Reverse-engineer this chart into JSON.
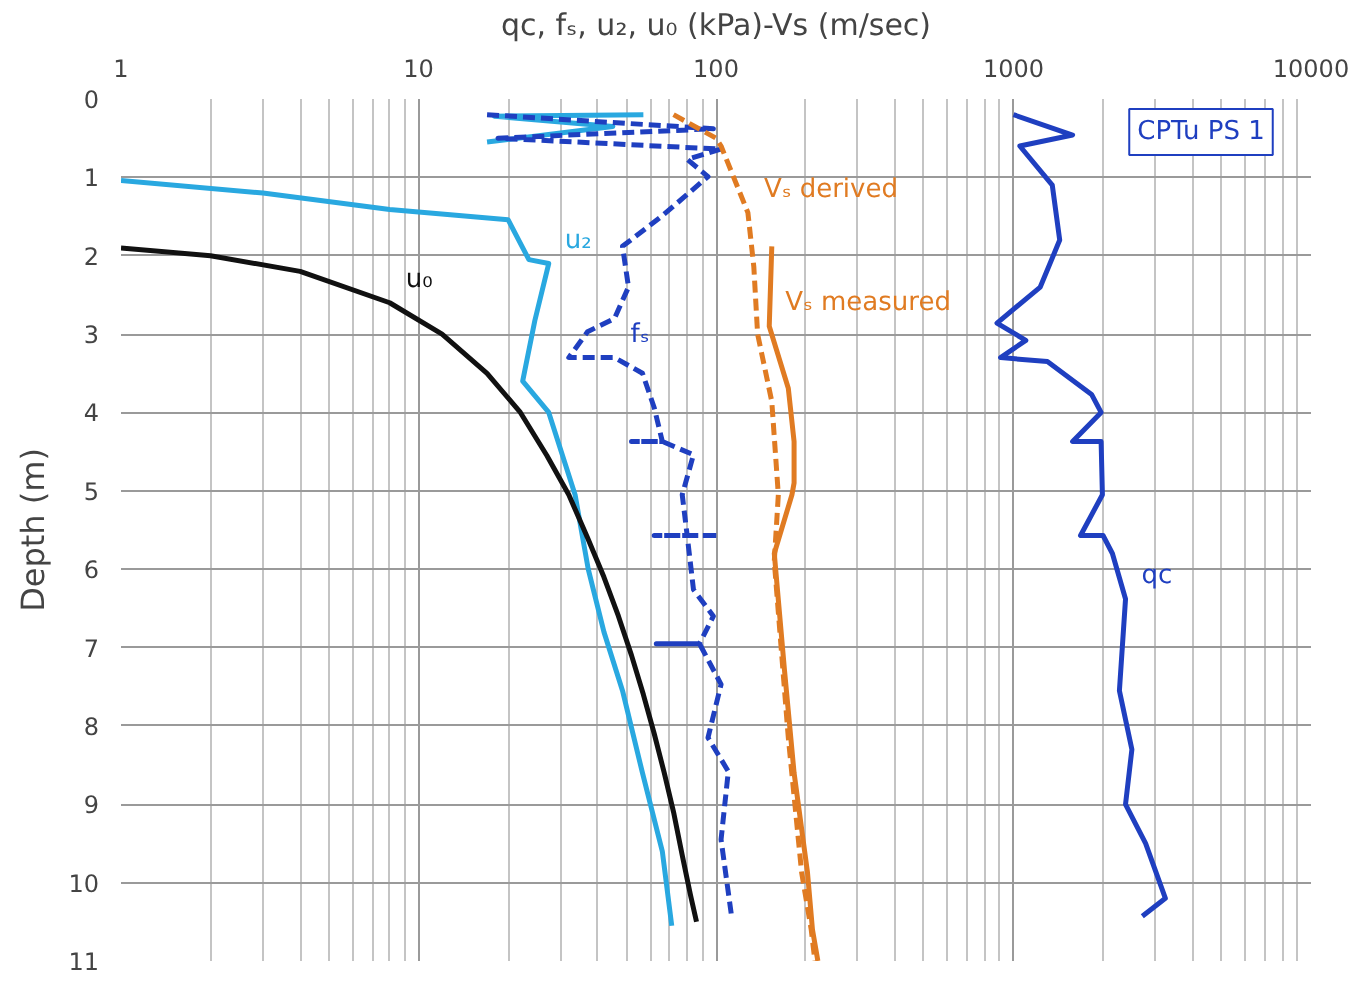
{
  "chart_data": {
    "type": "line",
    "title": "qc, fₛ, u₂, u₀ (kPa)-Vs (m/sec)",
    "ylabel": "Depth (m)",
    "xlim": [
      1,
      10000
    ],
    "xticks": [
      1,
      10,
      100,
      1000,
      10000
    ],
    "ylim": [
      11,
      0
    ],
    "yticks": [
      0,
      1,
      2,
      3,
      4,
      5,
      6,
      7,
      8,
      9,
      10,
      11
    ],
    "log": "x",
    "grid": true,
    "series": [
      {
        "color": "#29a8e0",
        "line_style": "solid",
        "x": [
          57,
          18,
          45,
          17,
          null,
          1,
          3,
          8,
          20,
          23.5,
          27.4,
          24.6,
          22.4,
          27.4,
          33.6,
          37.2,
          42,
          48.5,
          56.6,
          66,
          71
        ],
        "values": [
          0.2,
          0.22,
          0.35,
          0.55,
          null,
          1.04,
          1.2,
          1.41,
          1.54,
          2.05,
          2.1,
          2.83,
          3.6,
          4.0,
          5.05,
          6.0,
          6.8,
          7.55,
          8.6,
          9.6,
          10.55
        ]
      },
      {
        "color": "#111111",
        "line_style": "solid",
        "x": [
          1,
          2,
          4,
          8,
          12,
          17,
          22,
          27,
          32,
          37,
          42,
          47,
          52,
          57,
          62,
          67,
          72,
          77,
          82,
          86
        ],
        "values": [
          1.9,
          2.0,
          2.2,
          2.6,
          3.0,
          3.5,
          4.0,
          4.55,
          5.05,
          5.6,
          6.1,
          6.6,
          7.1,
          7.6,
          8.1,
          8.6,
          9.1,
          9.65,
          10.15,
          10.5
        ]
      },
      {
        "color": "#1f3fc0",
        "line_style": "dashed",
        "x": [
          17,
          98,
          18.5,
          104,
          80,
          94,
          66,
          48.5,
          50.8,
          45.6,
          37,
          32,
          45.6,
          56.6,
          62,
          66,
          52,
          66,
          84,
          77,
          80,
          62,
          102,
          80,
          84,
          98,
          88,
          63,
          88,
          104,
          94,
          110,
          104,
          113
        ],
        "values": [
          0.2,
          0.38,
          0.5,
          0.64,
          0.77,
          0.99,
          1.49,
          1.88,
          2.4,
          2.8,
          2.97,
          3.3,
          3.3,
          3.5,
          3.94,
          4.37,
          4.37,
          4.37,
          4.54,
          5.05,
          5.57,
          5.57,
          5.57,
          5.57,
          6.26,
          6.6,
          6.95,
          6.95,
          6.95,
          7.47,
          8.15,
          8.58,
          9.45,
          10.45
        ]
      },
      {
        "color": "#1f3fc0",
        "line_style": "solid",
        "x": [
          1000,
          1580,
          1050,
          1350,
          1430,
          1230,
          880,
          1100,
          905,
          1300,
          1830,
          1970,
          1580,
          1970,
          1990,
          1680,
          2000,
          2150,
          2380,
          2270,
          2500,
          2380,
          2780,
          3240,
          2710
        ],
        "values": [
          0.2,
          0.46,
          0.6,
          1.1,
          1.8,
          2.4,
          2.86,
          3.08,
          3.3,
          3.35,
          3.77,
          4.0,
          4.37,
          4.37,
          5.05,
          5.57,
          5.57,
          5.8,
          6.38,
          7.55,
          8.3,
          9.0,
          9.5,
          10.2,
          10.43
        ]
      },
      {
        "color": "#e07b22",
        "line_style": "dashed",
        "x": [
          72,
          100,
          104,
          128,
          134,
          138,
          154,
          162,
          157,
          175,
          194,
          209,
          215
        ],
        "values": [
          0.2,
          0.5,
          0.6,
          1.45,
          2.14,
          3.0,
          3.86,
          5.05,
          5.9,
          8.15,
          9.87,
          10.6,
          11
        ]
      },
      {
        "color": "#e07b22",
        "line_style": "solid",
        "x": [
          154,
          151,
          175,
          183,
          183,
          180,
          157,
          170,
          183,
          203,
          211,
          220
        ],
        "values": [
          1.88,
          2.9,
          3.69,
          4.37,
          4.9,
          5.05,
          5.8,
          7.3,
          8.6,
          9.87,
          10.6,
          11
        ]
      }
    ],
    "annotations": [
      {
        "text": "u₂",
        "x": 27.4,
        "y": 2.1
      },
      {
        "text": "u₀",
        "x": 8,
        "y": 2.6
      },
      {
        "text": "fₛ",
        "x": 45.6,
        "y": 3.3
      },
      {
        "text": "qc",
        "x": 2380,
        "y": 6.38
      },
      {
        "text": "Vₛ derived",
        "x": 128,
        "y": 1.45
      },
      {
        "text": "Vₛ measured",
        "x": 151,
        "y": 2.9
      },
      "CPTu PS 1"
    ]
  }
}
